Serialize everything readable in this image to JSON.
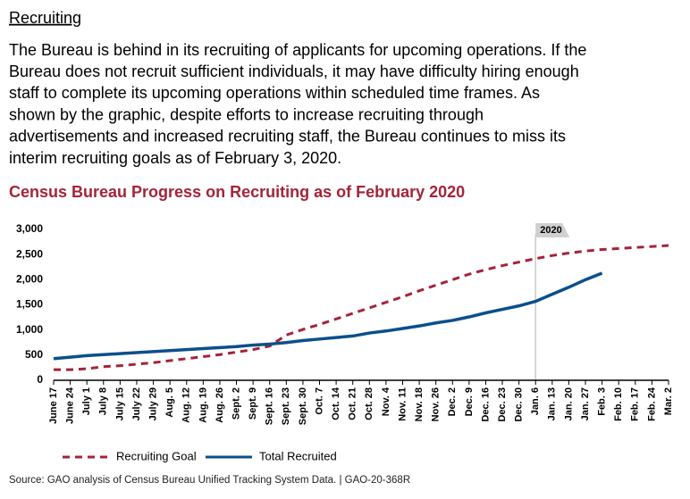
{
  "heading": "Recruiting",
  "paragraph": [
    "The Bureau is behind in its recruiting of applicants for upcoming operations. If the",
    "Bureau does not recruit sufficient individuals, it may have difficulty hiring enough",
    "staff to complete its upcoming operations within scheduled time frames. As",
    "shown by the graphic, despite efforts to increase recruiting through",
    "advertisements and increased recruiting staff, the Bureau continues to miss its",
    "interim recruiting goals as of February 3, 2020."
  ],
  "chart_data": {
    "type": "line",
    "title": "Census Bureau Progress on Recruiting as of February 2020",
    "annotation": "2020",
    "source": "Source: GAO analysis of Census Bureau Unified Tracking System Data. | GAO-20-368R",
    "categories": [
      "June 17",
      "June 24",
      "July 1",
      "July 8",
      "July 15",
      "July 22",
      "July 29",
      "Aug. 5",
      "Aug. 12",
      "Aug. 19",
      "Aug. 26",
      "Sept. 2",
      "Sept. 9",
      "Sept. 16",
      "Sept. 23",
      "Sept. 30",
      "Oct. 7",
      "Oct. 14",
      "Oct. 21",
      "Oct. 28",
      "Nov. 4",
      "Nov. 11",
      "Nov. 18",
      "Nov. 26",
      "Dec. 2",
      "Dec. 9",
      "Dec. 16",
      "Dec. 23",
      "Dec. 30",
      "Jan. 6",
      "Jan. 13",
      "Jan. 20",
      "Jan. 27",
      "Feb. 3",
      "Feb. 10",
      "Feb. 17",
      "Feb. 24",
      "Mar. 2"
    ],
    "series": [
      {
        "name": "Recruiting Goal",
        "color": "#a4233a",
        "dashed": true,
        "values": [
          210,
          210,
          230,
          270,
          290,
          320,
          350,
          390,
          430,
          470,
          510,
          560,
          610,
          680,
          900,
          1010,
          1110,
          1220,
          1330,
          1440,
          1550,
          1660,
          1780,
          1890,
          2000,
          2110,
          2200,
          2280,
          2350,
          2420,
          2480,
          2530,
          2570,
          2600,
          2620,
          2640,
          2660,
          2680
        ]
      },
      {
        "name": "Total Recruited",
        "color": "#0b4f8c",
        "dashed": false,
        "values": [
          430,
          460,
          490,
          510,
          530,
          550,
          570,
          590,
          610,
          630,
          650,
          670,
          700,
          720,
          750,
          790,
          820,
          850,
          880,
          940,
          980,
          1030,
          1080,
          1140,
          1190,
          1260,
          1340,
          1410,
          1480,
          1570,
          1710,
          1850,
          2000,
          2130,
          null,
          null,
          null,
          null
        ]
      }
    ],
    "ylim": [
      0,
      3000
    ],
    "yticks": [
      0,
      500,
      {
        "value": 1000,
        "label": "1,000"
      },
      {
        "value": 1500,
        "label": "1,500"
      },
      {
        "value": 2000,
        "label": "2,000"
      },
      {
        "value": 2500,
        "label": "2,500"
      },
      {
        "value": 3000,
        "label": "3,000"
      }
    ],
    "grid": false
  }
}
